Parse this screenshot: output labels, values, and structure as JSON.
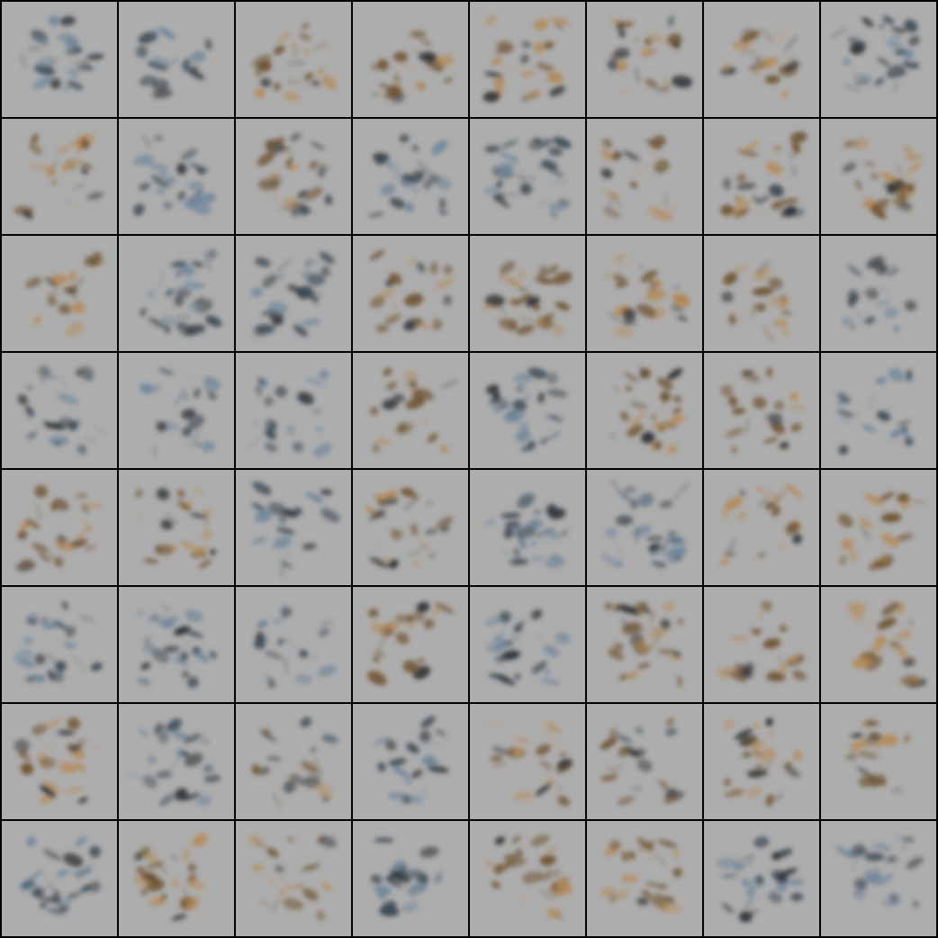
{
  "image": {
    "kind": "generated-sample-grid",
    "grid_rows": 8,
    "grid_cols": 8,
    "palette": {
      "background": "#000000",
      "tile_background": "#adadad",
      "brown": "#6f5230",
      "tan": "#b48a58",
      "slate": "#3e4b55",
      "blue_gray": "#6e859a",
      "dark": "#2b2f33"
    },
    "tile_tones": [
      [
        "blue",
        "blue",
        "brown",
        "brown",
        "brown",
        "mixed",
        "brown",
        "blue"
      ],
      [
        "brown",
        "blue",
        "mixed",
        "blue",
        "blue",
        "brown",
        "mixed",
        "brown"
      ],
      [
        "brown",
        "blue",
        "blue",
        "brown",
        "brown",
        "brown",
        "brown",
        "blue"
      ],
      [
        "blue",
        "blue",
        "blue",
        "brown",
        "blue",
        "brown",
        "brown",
        "blue"
      ],
      [
        "brown",
        "brown",
        "blue",
        "mixed",
        "blue",
        "blue",
        "brown",
        "brown"
      ],
      [
        "blue",
        "blue",
        "blue",
        "brown",
        "blue",
        "brown",
        "brown",
        "brown"
      ],
      [
        "brown",
        "blue",
        "mixed",
        "blue",
        "brown",
        "mixed",
        "brown",
        "brown"
      ],
      [
        "blue",
        "brown",
        "brown",
        "blue",
        "brown",
        "brown",
        "blue",
        "blue"
      ]
    ]
  }
}
